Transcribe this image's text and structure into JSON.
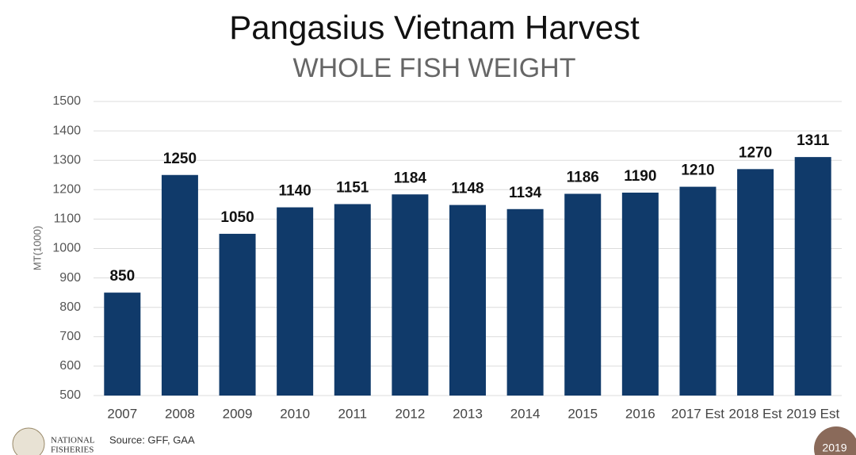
{
  "chart_data": {
    "type": "bar",
    "title": "Pangasius Vietnam Harvest",
    "subtitle": "WHOLE  FISH WEIGHT",
    "y_label": "MT(1000)",
    "categories": [
      "2007",
      "2008",
      "2009",
      "2010",
      "2011",
      "2012",
      "2013",
      "2014",
      "2015",
      "2016",
      "2017 Est",
      "2018 Est",
      "2019 Est"
    ],
    "values": [
      850,
      1250,
      1050,
      1140,
      1151,
      1184,
      1148,
      1134,
      1186,
      1190,
      1210,
      1270,
      1311
    ],
    "color": "#103a6a",
    "ylim": [
      500,
      1500
    ],
    "yticks": [
      500,
      600,
      700,
      800,
      900,
      1000,
      1100,
      1200,
      1300,
      1400,
      1500
    ],
    "grid": true
  },
  "footer": {
    "logo_text": [
      "NATIONAL",
      "FISHERIES"
    ],
    "source": "Source: GFF, GAA",
    "badge": "2019"
  }
}
